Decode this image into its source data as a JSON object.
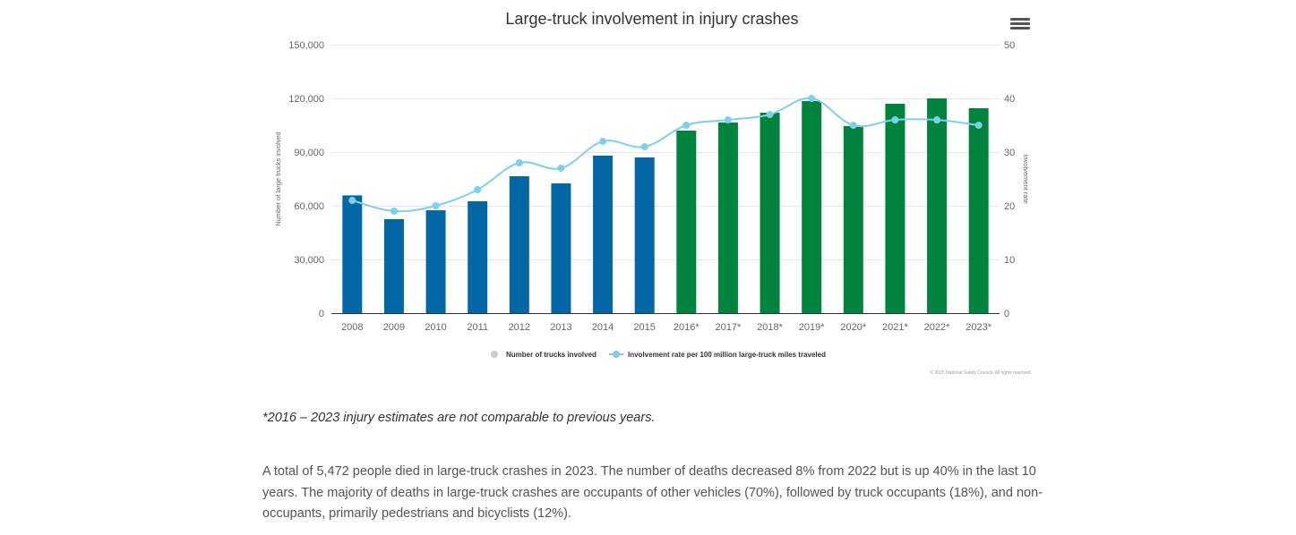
{
  "chart_data": {
    "type": "bar",
    "title": "Large-truck involvement in injury crashes",
    "categories": [
      "2008",
      "2009",
      "2010",
      "2011",
      "2012",
      "2013",
      "2014",
      "2015",
      "2016*",
      "2017*",
      "2018*",
      "2019*",
      "2020*",
      "2021*",
      "2022*",
      "2023*"
    ],
    "series": [
      {
        "name": "Number of trucks involved",
        "type": "bar",
        "axis": "left",
        "values": [
          65800,
          52500,
          57500,
          62500,
          76500,
          72500,
          88000,
          87000,
          102000,
          106500,
          112000,
          118500,
          104500,
          117000,
          120000,
          114500
        ],
        "colors": [
          "#0367a6",
          "#0367a6",
          "#0367a6",
          "#0367a6",
          "#0367a6",
          "#0367a6",
          "#0367a6",
          "#0367a6",
          "#00843d",
          "#00843d",
          "#00843d",
          "#00843d",
          "#00843d",
          "#00843d",
          "#00843d",
          "#00843d"
        ]
      },
      {
        "name": "Involvement rate per 100 million large-truck miles traveled",
        "type": "spline",
        "axis": "right",
        "values": [
          21,
          19,
          20,
          23,
          28,
          27,
          32,
          31,
          35,
          36,
          37,
          40,
          35,
          36,
          36,
          35
        ],
        "color": "#7fcfe9"
      }
    ],
    "ylabel": "Number of large trucks involved",
    "y2label": "Involvement rate",
    "ylim": [
      0,
      150000
    ],
    "y2lim": [
      0,
      50
    ],
    "yticks": [
      "0",
      "30,000",
      "60,000",
      "90,000",
      "120,000",
      "150,000"
    ],
    "y2ticks": [
      "0",
      "10",
      "20",
      "30",
      "40",
      "50"
    ],
    "grid": true,
    "legend": "bottom-center",
    "legend_marker_color": "#cccccc",
    "credits": "© 2025 National Safety Council. All rights reserved."
  },
  "menu": {
    "icon": "hamburger-menu-icon"
  },
  "footnote": "*2016 – 2023 injury estimates are not comparable to previous years.",
  "paragraph": "A total of 5,472 people died in large-truck crashes in 2023. The number of deaths decreased 8% from 2022 but is up 40% in the last 10 years. The majority of deaths in large-truck crashes are occupants of other vehicles (70%), followed by truck occupants (18%), and non-occupants, primarily pedestrians and bicyclists (12%)."
}
